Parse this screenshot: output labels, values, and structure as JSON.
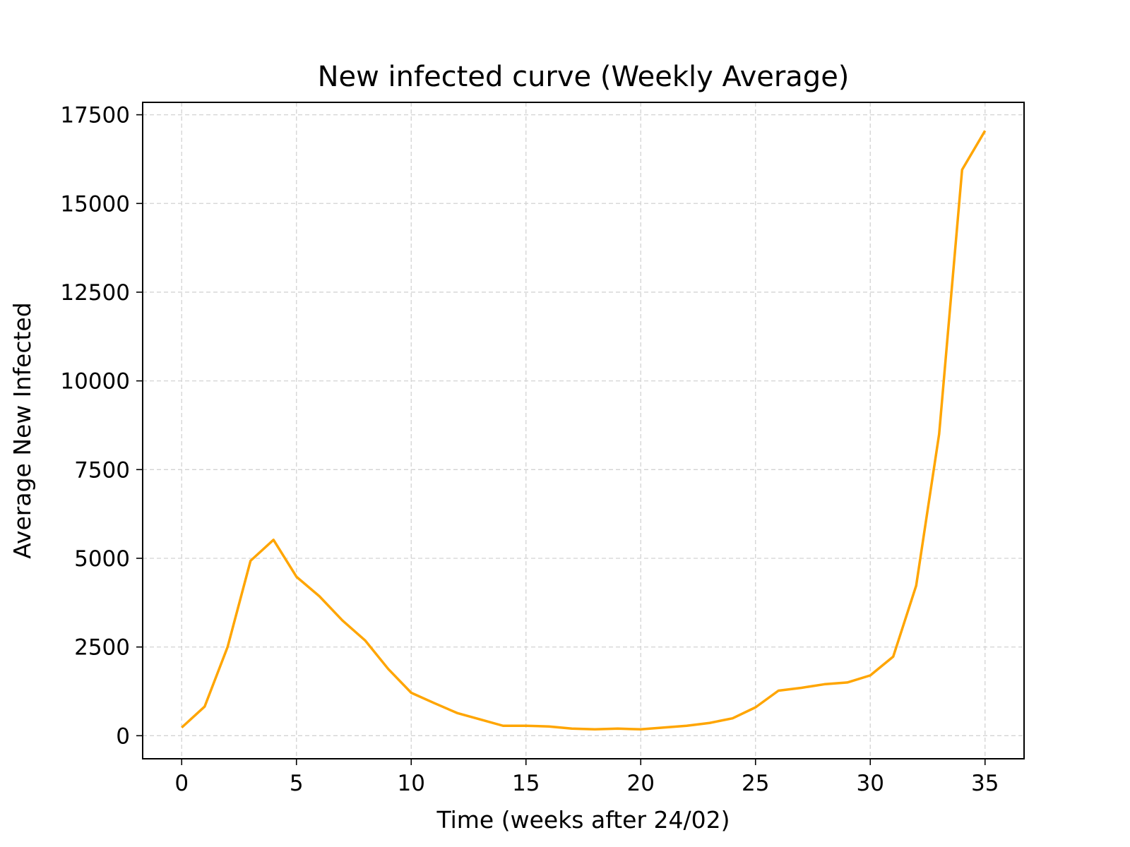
{
  "chart_data": {
    "type": "line",
    "title": "New infected curve (Weekly Average)",
    "xlabel": "Time (weeks after 24/02)",
    "ylabel": "Average New Infected",
    "xlim": [
      -1.7,
      36.7
    ],
    "ylim": [
      -650,
      17850
    ],
    "xticks": [
      0,
      5,
      10,
      15,
      20,
      25,
      30,
      35
    ],
    "xtick_labels": [
      "0",
      "5",
      "10",
      "15",
      "20",
      "25",
      "30",
      "35"
    ],
    "yticks": [
      0,
      2500,
      5000,
      7500,
      10000,
      12500,
      15000,
      17500
    ],
    "ytick_labels": [
      "0",
      "2500",
      "5000",
      "7500",
      "10000",
      "12500",
      "15000",
      "17500"
    ],
    "grid": true,
    "series": [
      {
        "color": "#ffa500",
        "x": [
          0,
          1,
          2,
          3,
          4,
          5,
          6,
          7,
          8,
          9,
          10,
          11,
          12,
          13,
          14,
          15,
          16,
          17,
          18,
          19,
          20,
          21,
          22,
          23,
          24,
          25,
          26,
          27,
          28,
          29,
          30,
          31,
          32,
          33,
          34,
          35
        ],
        "y": [
          230,
          820,
          2500,
          4930,
          5520,
          4480,
          3930,
          3250,
          2680,
          1880,
          1210,
          920,
          640,
          460,
          280,
          280,
          260,
          200,
          180,
          200,
          180,
          230,
          280,
          360,
          490,
          800,
          1270,
          1350,
          1450,
          1500,
          1700,
          2230,
          4230,
          8500,
          15950,
          17050
        ]
      }
    ]
  }
}
